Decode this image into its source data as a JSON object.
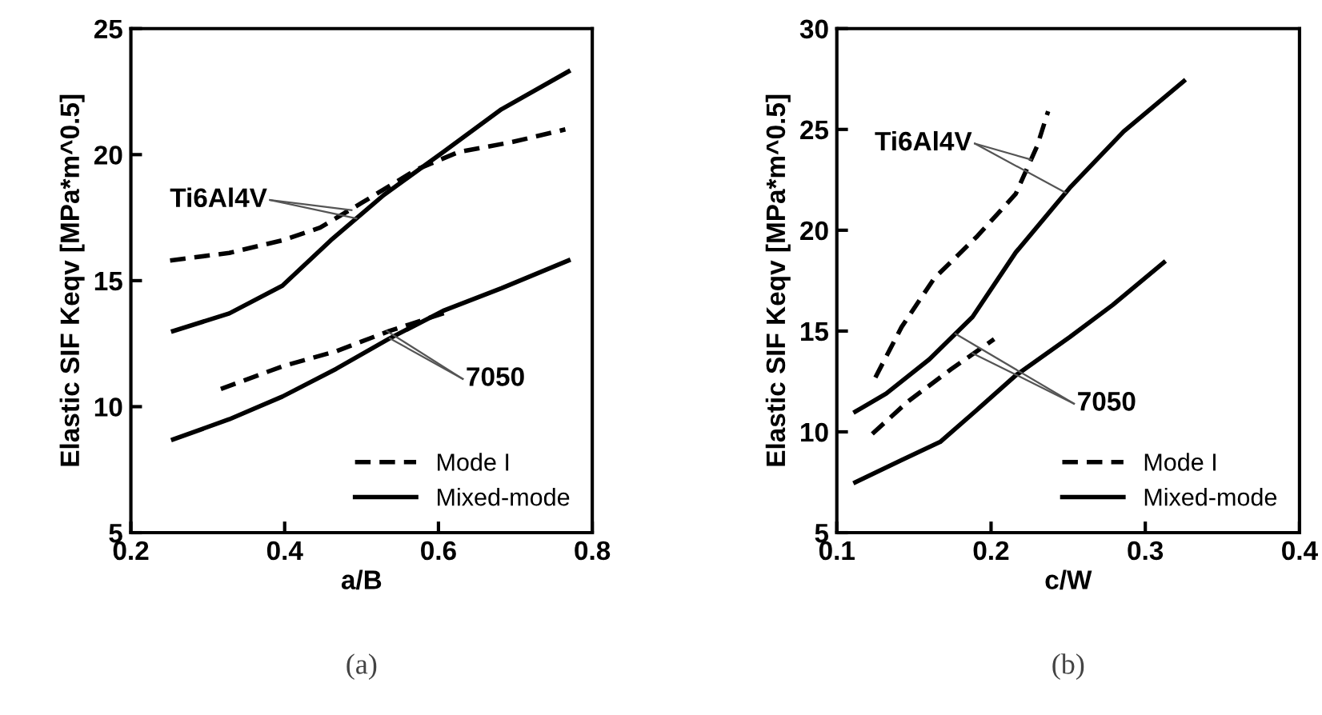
{
  "chart_data": [
    {
      "type": "line",
      "xlabel": "a/B",
      "ylabel": "Elastic SIF Keqv [MPa*m^0.5]",
      "xlim": [
        0.2,
        0.8
      ],
      "xticks": [
        0.2,
        0.4,
        0.6,
        0.8
      ],
      "ylim": [
        5,
        25
      ],
      "yticks": [
        5,
        10,
        15,
        20,
        25
      ],
      "legend": "bottom right",
      "annotations": [
        {
          "text": "Ti6Al4V",
          "x": 0.487,
          "y": 17.8
        },
        {
          "text": "7050",
          "x": 0.533,
          "y": 13.0
        },
        "(a)"
      ],
      "series": [
        {
          "name": "Mode I",
          "color": "#000000",
          "line_style": "dashed",
          "x": [
            0.251,
            0.328,
            0.397,
            0.446,
            0.501,
            0.571,
            0.626,
            0.696,
            0.765
          ],
          "values": [
            15.8,
            16.1,
            16.6,
            17.1,
            18.1,
            19.4,
            20.1,
            20.5,
            21.0
          ]
        },
        {
          "name": "Mixed-mode",
          "color": "#000000",
          "line_style": "solid",
          "x": [
            0.255,
            0.328,
            0.397,
            0.46,
            0.529,
            0.606,
            0.682,
            0.769
          ],
          "values": [
            13.0,
            13.7,
            14.8,
            16.6,
            18.4,
            20.1,
            21.8,
            23.3
          ]
        },
        {
          "name": "Mode I",
          "color": "#000000",
          "line_style": "dashed",
          "x": [
            0.317,
            0.397,
            0.467,
            0.536,
            0.616
          ],
          "values": [
            10.7,
            11.6,
            12.2,
            13.0,
            13.8
          ]
        },
        {
          "name": "Mixed-mode",
          "color": "#000000",
          "line_style": "solid",
          "x": [
            0.255,
            0.328,
            0.397,
            0.467,
            0.536,
            0.606,
            0.682,
            0.769
          ],
          "values": [
            8.7,
            9.5,
            10.4,
            11.5,
            12.7,
            13.8,
            14.7,
            15.8
          ]
        }
      ]
    },
    {
      "type": "line",
      "xlabel": "c/W",
      "ylabel": "Elastic SIF Keqv [MPa*m^0.5]",
      "xlim": [
        0.1,
        0.4
      ],
      "xticks": [
        0.1,
        0.2,
        0.3,
        0.4
      ],
      "ylim": [
        5,
        30
      ],
      "yticks": [
        5,
        10,
        15,
        20,
        25,
        30
      ],
      "legend": "bottom right",
      "annotations": [
        {
          "text": "Ti6Al4V",
          "x": 0.226,
          "y": 23.5
        },
        {
          "text": "7050",
          "x": 0.188,
          "y": 13.9
        },
        "(b)"
      ],
      "series": [
        {
          "name": "Mode I",
          "color": "#000000",
          "line_style": "dashed",
          "x": [
            0.125,
            0.142,
            0.163,
            0.191,
            0.216,
            0.23,
            0.237
          ],
          "values": [
            12.7,
            15.2,
            17.6,
            19.7,
            21.8,
            24.2,
            25.9
          ]
        },
        {
          "name": "Mixed-mode",
          "color": "#000000",
          "line_style": "solid",
          "x": [
            0.112,
            0.132,
            0.16,
            0.188,
            0.216,
            0.251,
            0.286,
            0.325
          ],
          "values": [
            11.0,
            11.9,
            13.6,
            15.7,
            18.9,
            22.1,
            24.9,
            27.4
          ]
        },
        {
          "name": "Mode I",
          "color": "#000000",
          "line_style": "dashed",
          "x": [
            0.123,
            0.146,
            0.174,
            0.202
          ],
          "values": [
            9.9,
            11.5,
            13.1,
            14.6
          ]
        },
        {
          "name": "Mixed-mode",
          "color": "#000000",
          "line_style": "solid",
          "x": [
            0.112,
            0.142,
            0.167,
            0.191,
            0.216,
            0.251,
            0.279,
            0.312
          ],
          "values": [
            7.5,
            8.6,
            9.5,
            11.1,
            12.8,
            14.7,
            16.3,
            18.4
          ]
        }
      ]
    }
  ]
}
